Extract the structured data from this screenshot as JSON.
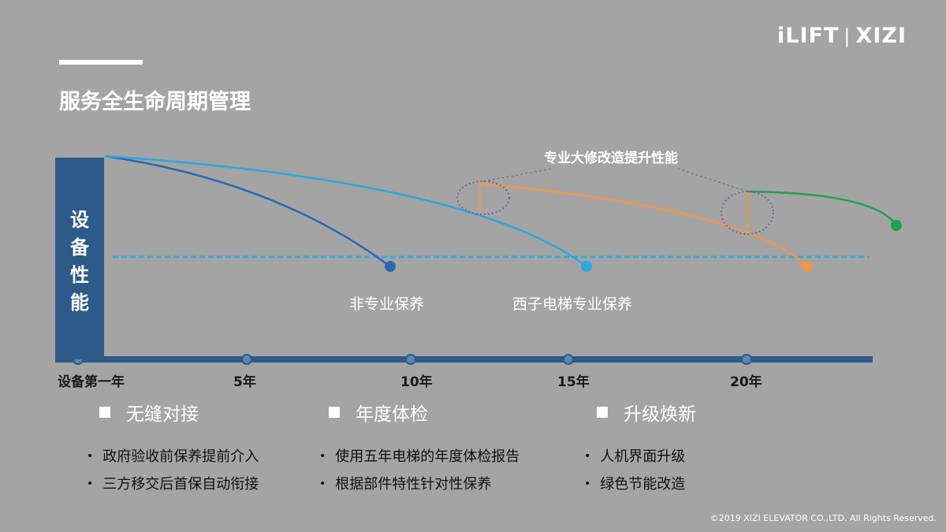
{
  "logo": {
    "left": "iLIFT",
    "separator": "|",
    "right": "XIZI"
  },
  "title": "服务全生命周期管理",
  "diagram": {
    "y_axis_title": [
      "设",
      "备",
      "性",
      "能"
    ],
    "annotation": "专业大修改造提升性能",
    "curve_labels": {
      "non_professional": "非专业保养",
      "xizi_professional": "西子电梯专业保养"
    },
    "x_ticks": [
      "设备第一年",
      "5年",
      "10年",
      "15年",
      "20年"
    ],
    "colors": {
      "non_professional": "#2a67b3",
      "xizi_professional": "#29a8e0",
      "overhaul": "#f0964a",
      "upgrade": "#21a04a",
      "axis": "#2e5a8a",
      "threshold": "#38a6d8",
      "highlight_ellipse": "#7b5ea7"
    }
  },
  "sections": [
    {
      "heading": "无缝对接",
      "bullets": [
        "政府验收前保养提前介入",
        "三方移交后首保自动衔接"
      ]
    },
    {
      "heading": "年度体检",
      "bullets": [
        "使用五年电梯的年度体检报告",
        "根据部件特性针对性保养"
      ]
    },
    {
      "heading": "升级焕新",
      "bullets": [
        "人机界面升级",
        "绿色节能改造"
      ]
    }
  ],
  "copyright": "©2019 XIZI ELEVATOR CO.,LTD. All Rights Reserved."
}
